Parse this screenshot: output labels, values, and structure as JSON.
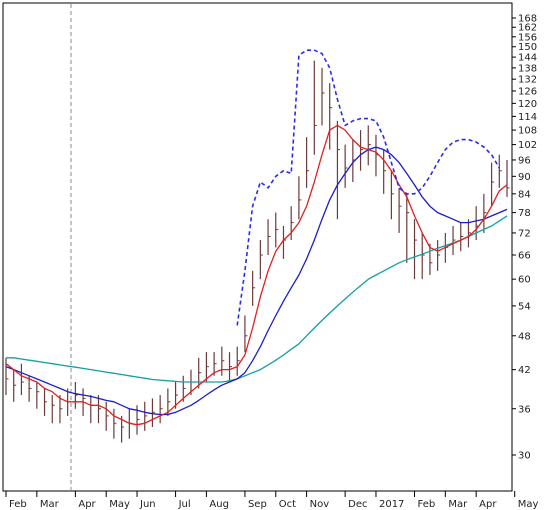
{
  "chart_data": {
    "type": "line",
    "title": "",
    "xlabel": "",
    "ylabel": "",
    "y_scale": "log",
    "ylim": [
      24.5,
      168
    ],
    "y_ticks": [
      30,
      36,
      42,
      48,
      54,
      60,
      66,
      72,
      78,
      84,
      90,
      96,
      102,
      108,
      114,
      120,
      126,
      132,
      138,
      144,
      150,
      156,
      162,
      168
    ],
    "y_tick_labels": [
      "30",
      "36",
      "42",
      "48",
      "54",
      "60",
      "66",
      "72",
      "78",
      "84",
      "90",
      "96",
      "102",
      "108",
      "114",
      "120",
      "126",
      "132",
      "138",
      "144",
      "150",
      "156",
      "162",
      "168"
    ],
    "x_tick_labels": [
      "Feb",
      "Mar",
      "Apr",
      "May",
      "Jun",
      "Jul",
      "Aug",
      "Sep",
      "Oct",
      "Nov",
      "Dec",
      "2017",
      "Feb",
      "Mar",
      "Apr",
      "May"
    ],
    "grid": false,
    "y_axis_position": "right",
    "colors": {
      "price_bars": "#6b3a3a",
      "ma_short": "#e02020",
      "ma_medium": "#1c1ccc",
      "ma_long": "#13a0a0",
      "channel": "#2a2af0",
      "vline": "#888888"
    },
    "x_weeks": [
      "Feb 1",
      "Feb 8",
      "Feb 15",
      "Feb 22",
      "Mar 1",
      "Mar 8",
      "Mar 15",
      "Mar 22",
      "Mar 29",
      "Apr 5",
      "Apr 12",
      "Apr 19",
      "Apr 26",
      "May 3",
      "May 10",
      "May 17",
      "May 24",
      "May 31",
      "Jun 7",
      "Jun 14",
      "Jun 21",
      "Jun 28",
      "Jul 5",
      "Jul 12",
      "Jul 19",
      "Jul 26",
      "Aug 2",
      "Aug 9",
      "Aug 16",
      "Aug 23",
      "Aug 30",
      "Sep 6",
      "Sep 13",
      "Sep 20",
      "Sep 27",
      "Oct 4",
      "Oct 11",
      "Oct 18",
      "Oct 25",
      "Nov 1",
      "Nov 8",
      "Nov 15",
      "Nov 22",
      "Nov 29",
      "Dec 6",
      "Dec 13",
      "Dec 20",
      "Dec 27",
      "Jan 3",
      "Jan 10",
      "Jan 17",
      "Jan 24",
      "Jan 31",
      "Feb 7",
      "Feb 14",
      "Feb 21",
      "Feb 28",
      "Mar 7",
      "Mar 14",
      "Mar 21",
      "Mar 28",
      "Apr 4",
      "Apr 11",
      "Apr 18",
      "Apr 25",
      "May 2"
    ],
    "series": [
      {
        "kind": "price",
        "close": [
          40.5,
          39.5,
          40,
          39,
          38.5,
          37,
          36.5,
          36,
          37,
          38,
          37.5,
          36.5,
          36,
          35,
          34,
          33.5,
          34,
          34.5,
          35,
          35.5,
          36,
          37,
          38,
          39,
          40,
          41.5,
          42.5,
          43,
          43.5,
          42.5,
          43.5,
          48,
          58,
          66,
          71,
          73,
          70,
          75,
          82,
          92,
          110,
          125,
          118,
          100,
          93,
          96,
          100,
          102,
          98,
          92,
          84,
          80,
          78,
          70,
          66,
          64,
          66,
          68,
          70,
          71,
          72,
          74,
          78,
          88,
          92,
          86
        ],
        "high": [
          44,
          42,
          43,
          41,
          40,
          39,
          38,
          38,
          39,
          40,
          39,
          38,
          38,
          37,
          36,
          35,
          36,
          36.5,
          37,
          37.5,
          38,
          39,
          40,
          41,
          42,
          44,
          45,
          45,
          46,
          45,
          46,
          52,
          62,
          70,
          76,
          78,
          74,
          80,
          90,
          105,
          142,
          138,
          130,
          112,
          102,
          104,
          108,
          110,
          106,
          100,
          92,
          86,
          84,
          76,
          72,
          69,
          70,
          72,
          74,
          75,
          76,
          80,
          84,
          95,
          98,
          96
        ],
        "low": [
          38,
          37,
          38,
          37,
          36,
          35,
          34,
          34,
          35,
          36,
          35,
          34,
          34,
          33,
          32,
          31.5,
          32,
          32.5,
          33,
          33.5,
          34,
          35,
          36,
          37,
          38,
          39,
          40,
          41,
          41,
          40,
          41,
          45,
          54,
          60,
          66,
          68,
          65,
          70,
          76,
          86,
          98,
          110,
          100,
          76,
          86,
          88,
          92,
          94,
          90,
          84,
          76,
          72,
          64,
          60,
          60,
          61,
          62,
          64,
          66,
          67,
          68,
          70,
          72,
          80,
          86,
          83
        ]
      },
      {
        "kind": "ma_short",
        "values": [
          43,
          42,
          41,
          40.5,
          40,
          39,
          38.5,
          37.5,
          37,
          37,
          37,
          36.5,
          36.5,
          36,
          35,
          34.5,
          34,
          33.8,
          34,
          34.5,
          35,
          35.5,
          36.5,
          37.5,
          38.5,
          39.5,
          40.5,
          41.5,
          42,
          42,
          42.5,
          44.5,
          49.5,
          56,
          62,
          67,
          70,
          72,
          75,
          80,
          88,
          98,
          108,
          110,
          108,
          104,
          101,
          100,
          99,
          96,
          92,
          87,
          83,
          77,
          72,
          68,
          67,
          68,
          69,
          70,
          71,
          73,
          76,
          80,
          85,
          87
        ]
      },
      {
        "kind": "ma_medium",
        "values": [
          42.5,
          42,
          41.5,
          41,
          40.5,
          40,
          39.5,
          39,
          38.5,
          38.2,
          38,
          37.8,
          37.5,
          37.2,
          37,
          36.5,
          36,
          35.8,
          35.5,
          35.3,
          35.2,
          35.2,
          35.5,
          36,
          36.5,
          37.2,
          38,
          38.8,
          39.5,
          40,
          40.5,
          41.5,
          43.5,
          46,
          49,
          52,
          55,
          58,
          61,
          65,
          70,
          76,
          82,
          87,
          91,
          95,
          98,
          100,
          101,
          100,
          98,
          95,
          91,
          87,
          83,
          80,
          78,
          77,
          76,
          75,
          75,
          75.5,
          76,
          77,
          78,
          79
        ]
      },
      {
        "kind": "ma_long",
        "values": [
          44,
          44,
          43.8,
          43.6,
          43.4,
          43.2,
          43,
          42.8,
          42.6,
          42.4,
          42.2,
          42,
          41.8,
          41.6,
          41.4,
          41.2,
          41,
          40.8,
          40.6,
          40.4,
          40.3,
          40.2,
          40.1,
          40,
          40,
          40,
          40,
          40,
          40,
          40.2,
          40.5,
          41,
          41.5,
          42,
          42.8,
          43.6,
          44.5,
          45.5,
          46.5,
          48,
          49.5,
          51,
          52.5,
          54,
          55.5,
          57,
          58.5,
          60,
          61,
          62,
          63,
          64,
          64.8,
          65.5,
          66.2,
          67,
          67.8,
          68.5,
          69.2,
          70,
          71,
          72,
          73,
          74,
          75.5,
          77
        ]
      },
      {
        "kind": "channel",
        "values": [
          null,
          null,
          null,
          null,
          null,
          null,
          null,
          null,
          null,
          null,
          null,
          null,
          null,
          null,
          null,
          null,
          null,
          null,
          null,
          null,
          null,
          null,
          null,
          null,
          null,
          null,
          null,
          null,
          null,
          null,
          50,
          62,
          80,
          88,
          86,
          90,
          92,
          91,
          145,
          148,
          148,
          146,
          138,
          122,
          110,
          112,
          113,
          113,
          112,
          105,
          95,
          86,
          84,
          84,
          86,
          90,
          95,
          100,
          103,
          104,
          104,
          103,
          101,
          98,
          93,
          null
        ]
      }
    ]
  }
}
